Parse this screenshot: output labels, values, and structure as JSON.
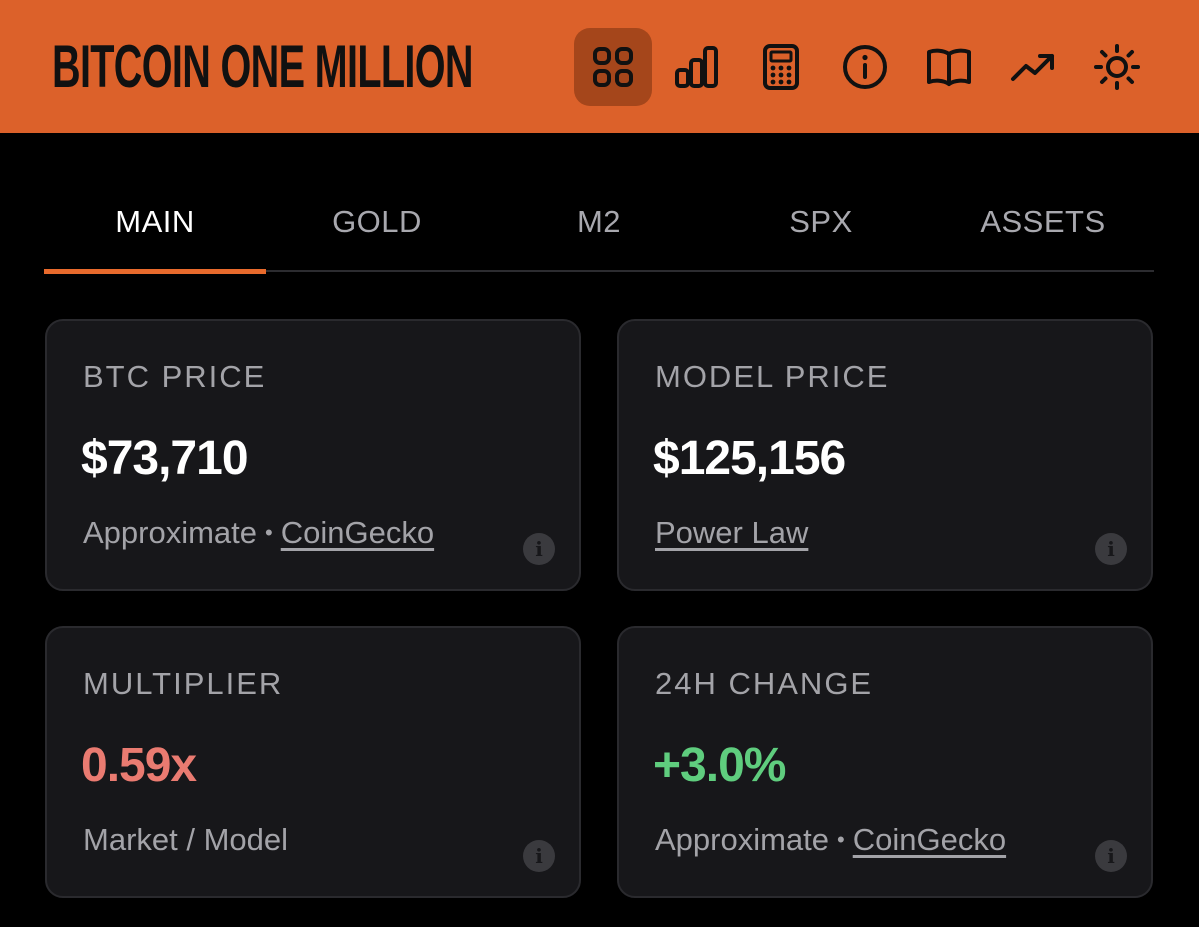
{
  "header": {
    "brand": "BITCOIN ONE MILLION",
    "bg_color": "#dc612a",
    "icons": [
      {
        "name": "grid-icon",
        "active": true
      },
      {
        "name": "bar-chart-icon",
        "active": false
      },
      {
        "name": "calculator-icon",
        "active": false
      },
      {
        "name": "info-icon",
        "active": false
      },
      {
        "name": "book-icon",
        "active": false
      },
      {
        "name": "trending-up-icon",
        "active": false
      },
      {
        "name": "sun-icon",
        "active": false
      }
    ]
  },
  "tabs": [
    {
      "label": "MAIN",
      "active": true
    },
    {
      "label": "GOLD",
      "active": false
    },
    {
      "label": "M2",
      "active": false
    },
    {
      "label": "SPX",
      "active": false
    },
    {
      "label": "ASSETS",
      "active": false
    }
  ],
  "cards": {
    "btc_price": {
      "label": "BTC PRICE",
      "value": "$73,710",
      "sub_text": "Approximate",
      "sub_link": "CoinGecko"
    },
    "model_price": {
      "label": "MODEL PRICE",
      "value": "$125,156",
      "sub_link": "Power Law"
    },
    "multiplier": {
      "label": "MULTIPLIER",
      "value": "0.59x",
      "value_color": "#ea7b71",
      "sub_text": "Market / Model"
    },
    "change_24h": {
      "label": "24H CHANGE",
      "value": "+3.0%",
      "value_color": "#5fcd7e",
      "sub_text": "Approximate",
      "sub_link": "CoinGecko"
    }
  },
  "colors": {
    "accent": "#e86a2c",
    "card_bg": "#17171a",
    "muted_text": "#a3a3a8"
  }
}
